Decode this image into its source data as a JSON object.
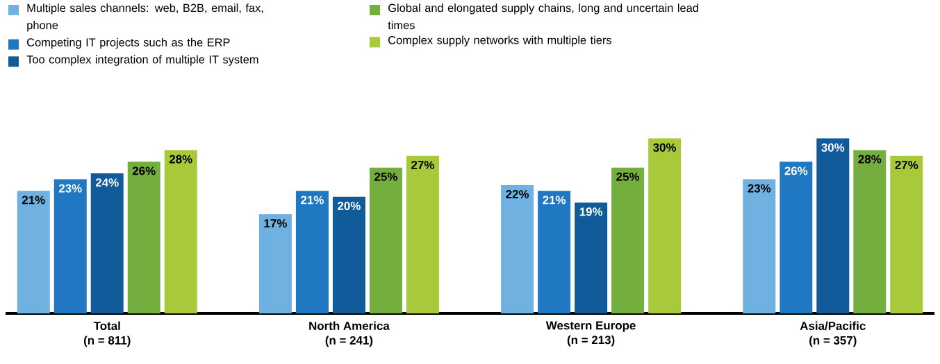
{
  "chart_data": {
    "type": "bar",
    "categories": [
      "Total",
      "North America",
      "Western Europe",
      "Asia/Pacific"
    ],
    "annotations": [
      "(n = 811)",
      "(n = 241)",
      "(n = 213)",
      "(n = 357)"
    ],
    "series": [
      {
        "name": "Multiple sales channels: web, B2B, email, fax, phone",
        "color": "#6fb1e0",
        "values": [
          21,
          17,
          22,
          23
        ],
        "value_labels": [
          "21%",
          "17%",
          "22%",
          "23%"
        ]
      },
      {
        "name": "Competing IT projects such as the ERP",
        "color": "#1f78c1",
        "values": [
          23,
          21,
          21,
          26
        ],
        "value_labels": [
          "23%",
          "21%",
          "21%",
          "26%"
        ]
      },
      {
        "name": "Too complex integration of multiple IT system",
        "color": "#125b9a",
        "values": [
          24,
          20,
          19,
          30
        ],
        "value_labels": [
          "24%",
          "20%",
          "19%",
          "30%"
        ]
      },
      {
        "name": "Global and elongated supply chains, long and uncertain lead times",
        "color": "#73ae3f",
        "values": [
          26,
          25,
          25,
          28
        ],
        "value_labels": [
          "26%",
          "25%",
          "25%",
          "28%"
        ]
      },
      {
        "name": "Complex supply networks with multiple tiers",
        "color": "#a8c93a",
        "values": [
          28,
          27,
          30,
          27
        ],
        "value_labels": [
          "28%",
          "27%",
          "30%",
          "27%"
        ]
      }
    ],
    "legend": "top left"
  }
}
